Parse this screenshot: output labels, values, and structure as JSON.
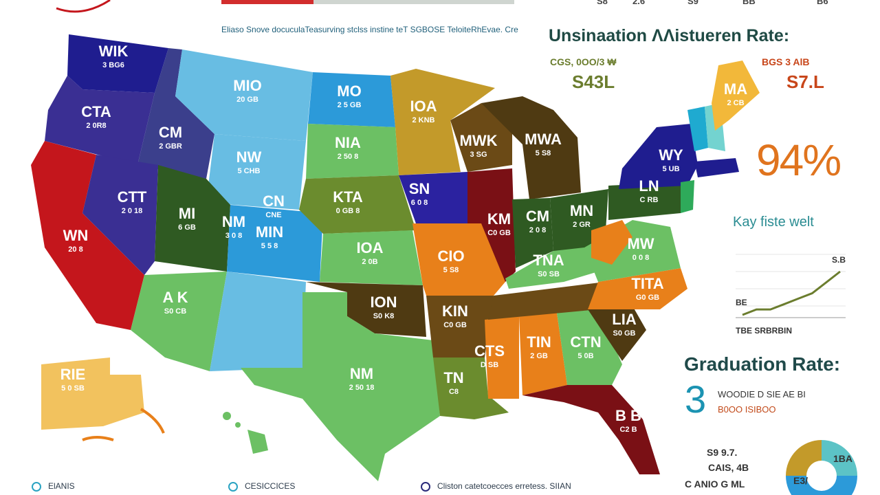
{
  "header": {
    "subtitle": "Eliaso Snove docuculaTeasurving stclss instine teT SGBOSE TeloiteRhEvae. Cre",
    "top_numbers": [
      "S8",
      "2.6",
      "S9",
      "BB",
      "B6"
    ]
  },
  "map": {
    "states": [
      {
        "code": "WIK",
        "value": "3 BG6"
      },
      {
        "code": "CTA",
        "value": "2 0R8"
      },
      {
        "code": "CM",
        "value": "2 GBR"
      },
      {
        "code": "MIO",
        "value": "20 GB"
      },
      {
        "code": "MO",
        "value": "2 5 GB"
      },
      {
        "code": "IOA",
        "value": "2 KNB"
      },
      {
        "code": "NIA",
        "value": "2 50 8"
      },
      {
        "code": "NW",
        "value": "5 CHB"
      },
      {
        "code": "KTA",
        "value": "0 GB 8"
      },
      {
        "code": "MI",
        "value": "6 GB"
      },
      {
        "code": "CN",
        "value": "CNE"
      },
      {
        "code": "NM",
        "value": "3 0 8"
      },
      {
        "code": "SN",
        "value": "6 0 8"
      },
      {
        "code": "CTT",
        "value": "2 0 18"
      },
      {
        "code": "WN",
        "value": "20 8"
      },
      {
        "code": "MIN",
        "value": "5 5 8"
      },
      {
        "code": "MWK",
        "value": "3 SG"
      },
      {
        "code": "MWA",
        "value": "5 S8"
      },
      {
        "code": "IOA",
        "value": "2 0B"
      },
      {
        "code": "A K",
        "value": "S0 CB"
      },
      {
        "code": "CIO",
        "value": "5 S8"
      },
      {
        "code": "ION",
        "value": "S0 K8"
      },
      {
        "code": "KIN",
        "value": "C0 GB"
      },
      {
        "code": "NM",
        "value": "2 50 18"
      },
      {
        "code": "CM",
        "value": "2 0 8"
      },
      {
        "code": "MN",
        "value": "2 GR"
      },
      {
        "code": "LN",
        "value": "C RB"
      },
      {
        "code": "KM",
        "value": "C0 GB"
      },
      {
        "code": "MW",
        "value": "0 0 8"
      },
      {
        "code": "WY",
        "value": "5 UB"
      },
      {
        "code": "TITA",
        "value": "G0 GB"
      },
      {
        "code": "TNA",
        "value": "S0 SB"
      },
      {
        "code": "CTS",
        "value": "D SB"
      },
      {
        "code": "TIN",
        "value": "2 GB"
      },
      {
        "code": "TN",
        "value": "C8"
      },
      {
        "code": "LIA",
        "value": "S0 GB"
      },
      {
        "code": "CTN",
        "value": "5 0B"
      },
      {
        "code": "B B",
        "value": "C2 B"
      },
      {
        "code": "MA",
        "value": "2 CB"
      },
      {
        "code": "RIE",
        "value": "5 0 SB"
      }
    ]
  },
  "panel": {
    "title": "Unsinaation ΛΛistueren Rate:",
    "left_stat_small": "CGS, 0OO/3 ₩",
    "left_stat_big": "S43L",
    "right_stat_small": "BGS 3 AlB",
    "right_stat_big": "S7.L",
    "big_percent": "94%",
    "trend_title": "Kay fiste welt",
    "trend_top_label": "S.B",
    "trend_left_label": "BE",
    "trend_axis_label": "TBE SRBRBIN",
    "graduation_title": "Graduation Rate:",
    "graduation_number": "3",
    "graduation_desc_1": "WOODIE D SIE AE BI",
    "graduation_desc_2": "B0OO ISIBOO",
    "donut_label_1": "S9 9.7.",
    "donut_label_2": "CAIS, 4B",
    "donut_caption": "C ANIO G ML",
    "donut_slice_label_1": "1BA",
    "donut_slice_label_2": "E3/"
  },
  "legend": [
    {
      "label": "ElANIS",
      "color": "#2aa3c2"
    },
    {
      "label": "CESICCICES",
      "color": "#2aa3c2"
    },
    {
      "label": "Cliston catetcoecces erretess. SIIAN",
      "color": "#2a2a7a"
    }
  ],
  "chart_data": {
    "type": "line",
    "title": "Kay fiste welt",
    "y_labels": [
      "S.B",
      "BE"
    ],
    "x_label": "TBE SRBRBIN",
    "values": [
      2,
      3,
      3,
      4,
      5,
      6,
      8,
      10
    ]
  },
  "colors": {
    "navy": "#1f1d8f",
    "purple": "#3a2f93",
    "red": "#c4161c",
    "light_blue": "#68bde3",
    "bright_blue": "#2c9ad9",
    "green": "#6cc064",
    "olive": "#6b8c2e",
    "dark_green": "#2f5a22",
    "mustard": "#c39a2a",
    "brown": "#6b4a16",
    "dark_brown": "#4f3a12",
    "orange": "#e8801a",
    "maroon": "#7a1015",
    "yellow": "#f2b83a",
    "teal": "#1faad0"
  }
}
